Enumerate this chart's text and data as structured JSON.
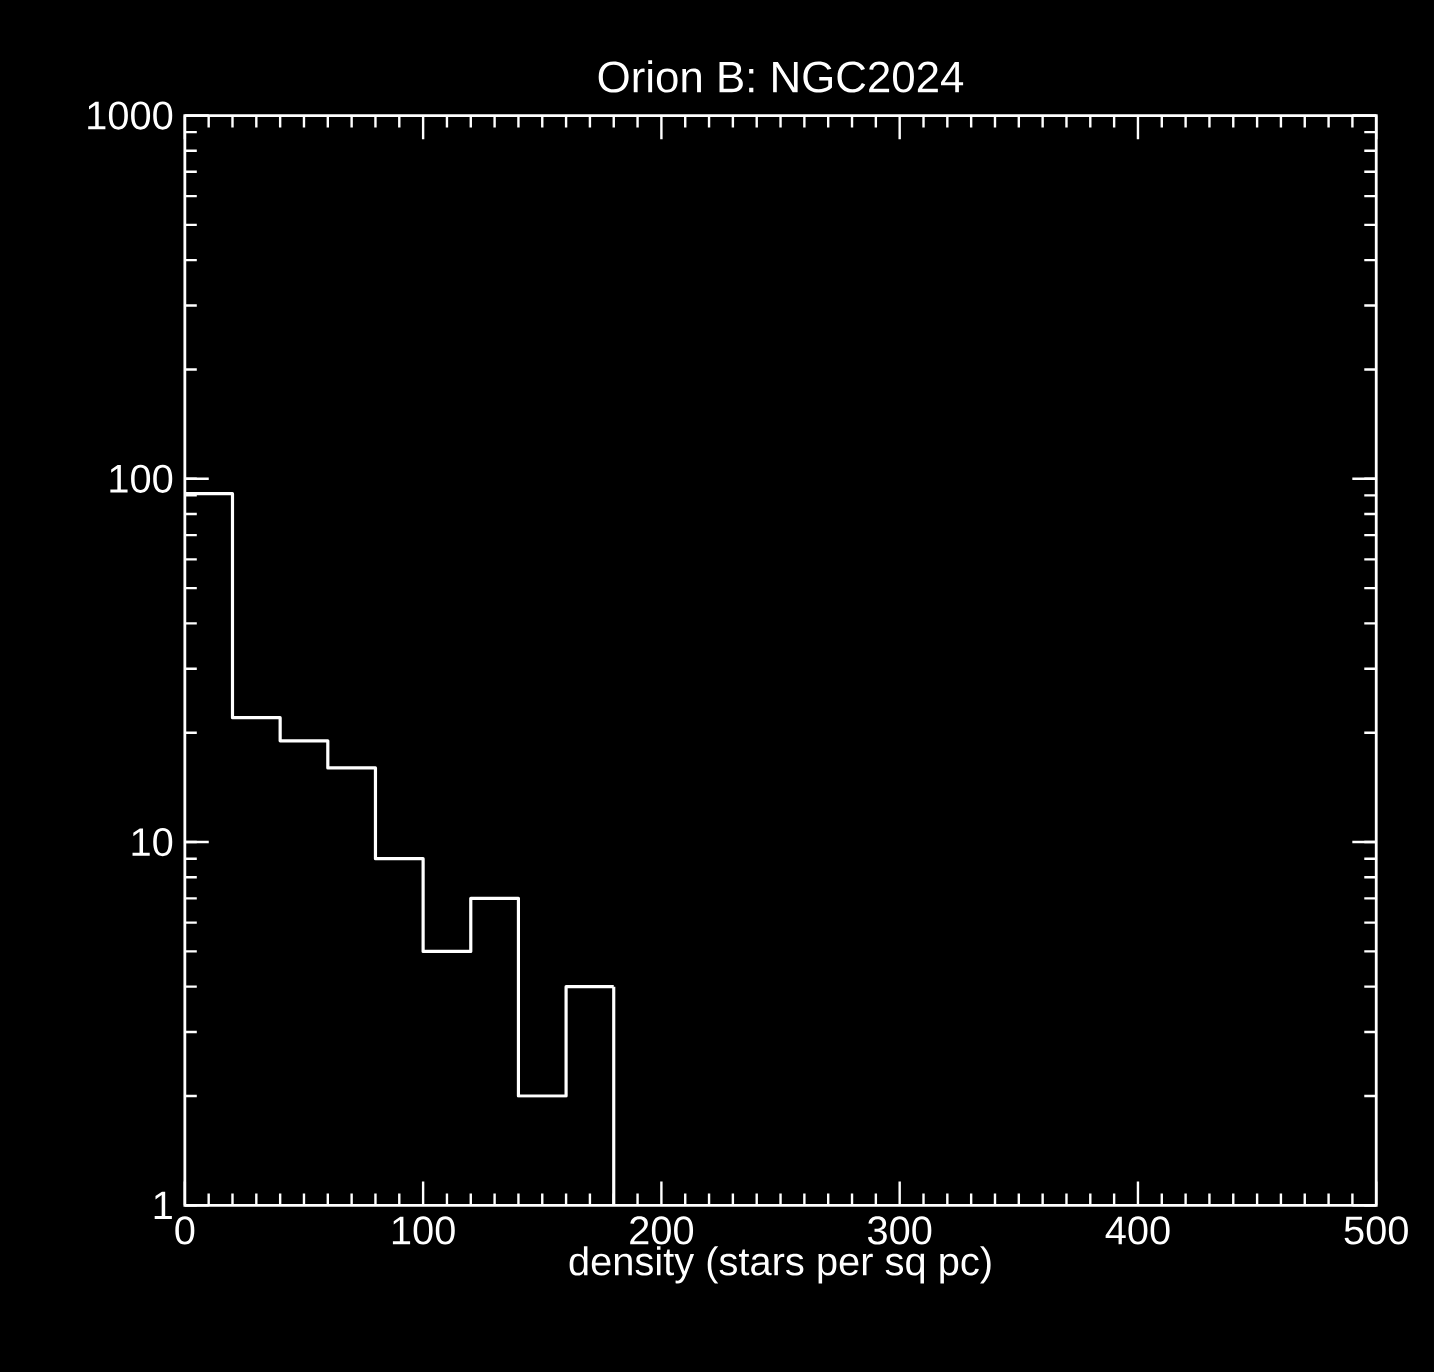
{
  "chart_data": {
    "type": "histogram",
    "title": "Orion B: NGC2024",
    "xlabel": "density (stars per sq pc)",
    "bins": [
      0,
      20,
      40,
      60,
      80,
      100,
      120,
      140,
      160,
      180
    ],
    "values": [
      91,
      22,
      19,
      16,
      9,
      5,
      7,
      2,
      4
    ],
    "color": "#ffffff",
    "log": true,
    "xlim": [
      0,
      500
    ],
    "ylim": [
      1,
      1000
    ],
    "xticks": [
      0,
      100,
      200,
      300,
      400,
      500
    ],
    "yticks": [
      1,
      10,
      100,
      1000
    ]
  }
}
